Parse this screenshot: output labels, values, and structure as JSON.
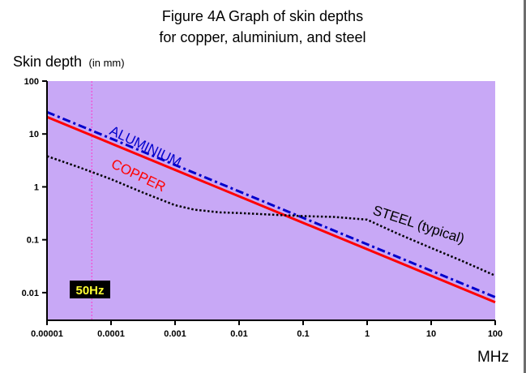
{
  "chart_data": {
    "type": "line",
    "title": [
      "Figure 4A   Graph of skin depths",
      "for copper, aluminium, and steel"
    ],
    "ylabel": "Skin depth",
    "ylabel_unit": "(in mm)",
    "xlabel": "MHz",
    "x_scale": "log",
    "y_scale": "log",
    "xlim": [
      1e-05,
      100
    ],
    "ylim": [
      0.003,
      100
    ],
    "x_ticks": [
      "0.00001",
      "0.0001",
      "0.001",
      "0.01",
      "0.1",
      "1",
      "10",
      "100"
    ],
    "y_ticks": [
      "100",
      "10",
      "1",
      "0.1",
      "0.01"
    ],
    "background_color": "#c8a8f6",
    "series": [
      {
        "name": "ALUMINIUM",
        "color": "#0000cc",
        "style": "dash-dot",
        "x": [
          1e-05,
          100
        ],
        "y": [
          26,
          0.0082
        ]
      },
      {
        "name": "COPPER",
        "color": "#ff0000",
        "style": "solid",
        "x": [
          1e-05,
          100
        ],
        "y": [
          21,
          0.0066
        ]
      },
      {
        "name": "STEEL (typical)",
        "color": "#000000",
        "style": "dotted",
        "x": [
          1e-05,
          3e-05,
          0.0001,
          0.0003,
          0.001,
          0.002,
          0.005,
          0.01,
          0.03,
          0.1,
          0.3,
          1,
          3,
          10,
          30,
          100
        ],
        "y": [
          3.8,
          2.4,
          1.4,
          0.8,
          0.45,
          0.37,
          0.33,
          0.32,
          0.3,
          0.28,
          0.27,
          0.24,
          0.13,
          0.07,
          0.04,
          0.021
        ]
      }
    ],
    "annotations": [
      {
        "text": "50Hz",
        "x": 5e-05,
        "style": "vertical-dashed-line",
        "color": "#ff33cc"
      }
    ]
  }
}
